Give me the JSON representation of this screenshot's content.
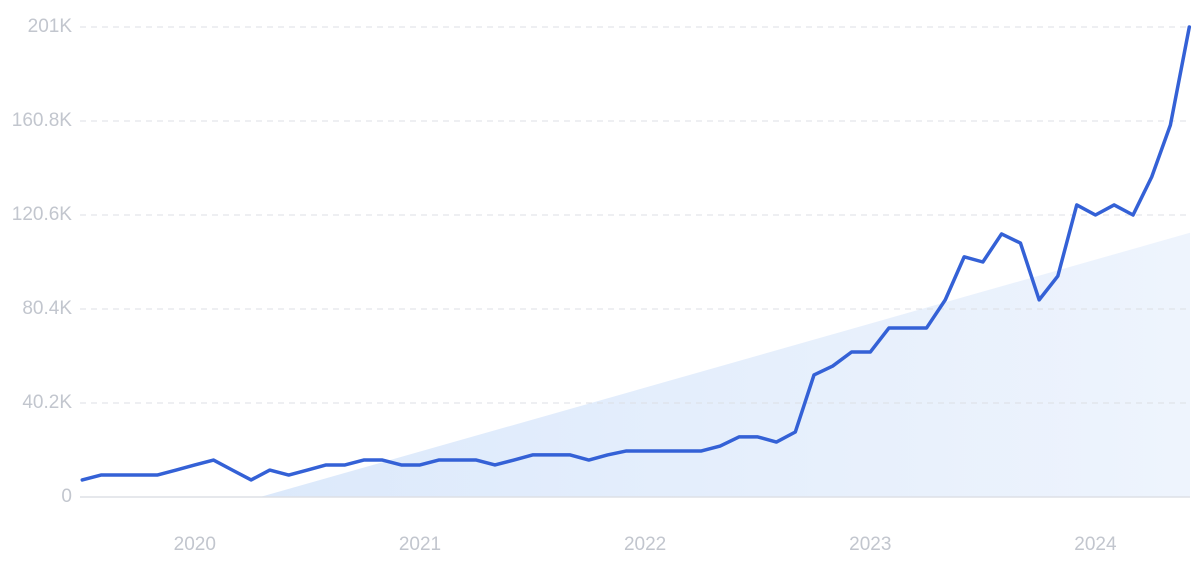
{
  "chart_data": {
    "type": "line",
    "x": [
      2019.5,
      2019.583,
      2019.667,
      2019.75,
      2019.833,
      2019.917,
      2020.0,
      2020.083,
      2020.167,
      2020.25,
      2020.333,
      2020.417,
      2020.5,
      2020.583,
      2020.667,
      2020.75,
      2020.833,
      2020.917,
      2021.0,
      2021.083,
      2021.167,
      2021.25,
      2021.333,
      2021.417,
      2021.5,
      2021.583,
      2021.667,
      2021.75,
      2021.833,
      2021.917,
      2022.0,
      2022.083,
      2022.167,
      2022.25,
      2022.333,
      2022.417,
      2022.5,
      2022.583,
      2022.667,
      2022.75,
      2022.833,
      2022.917,
      2023.0,
      2023.083,
      2023.167,
      2023.25,
      2023.333,
      2023.417,
      2023.5,
      2023.583,
      2023.667,
      2023.75,
      2023.833,
      2023.917,
      2024.0,
      2024.083,
      2024.167,
      2024.25,
      2024.333,
      2024.417
    ],
    "series": [
      {
        "color": "#3461d6",
        "values": [
          7300,
          9400,
          9400,
          9400,
          9400,
          11500,
          13700,
          15800,
          11500,
          7300,
          11500,
          9400,
          11500,
          13700,
          13700,
          15800,
          15800,
          13700,
          13700,
          15800,
          15800,
          15800,
          13700,
          15800,
          18000,
          18000,
          18000,
          15800,
          18000,
          19700,
          19700,
          19700,
          19700,
          19700,
          21800,
          25700,
          25700,
          23500,
          27800,
          52200,
          56000,
          62000,
          62000,
          72300,
          72300,
          72300,
          84300,
          102700,
          100500,
          112500,
          108600,
          84300,
          94500,
          124900,
          120600,
          124900,
          120600,
          136900,
          159100,
          201000
        ]
      }
    ],
    "trend": {
      "x": [
        2020.29,
        2024.42
      ],
      "values": [
        0,
        113000
      ],
      "color": "#e3eefc"
    },
    "xlim": [
      2019.49,
      2024.42
    ],
    "xticks": [
      2020,
      2021,
      2022,
      2023,
      2024
    ],
    "ylim": [
      0,
      201000
    ],
    "yticks": [
      0,
      {
        "value": 40200,
        "label": "40.2K"
      },
      {
        "value": 80400,
        "label": "80.4K"
      },
      {
        "value": 120600,
        "label": "120.6K"
      },
      {
        "value": 160800,
        "label": "160.8K"
      },
      {
        "value": 201000,
        "label": "201K"
      }
    ],
    "grid": true
  }
}
